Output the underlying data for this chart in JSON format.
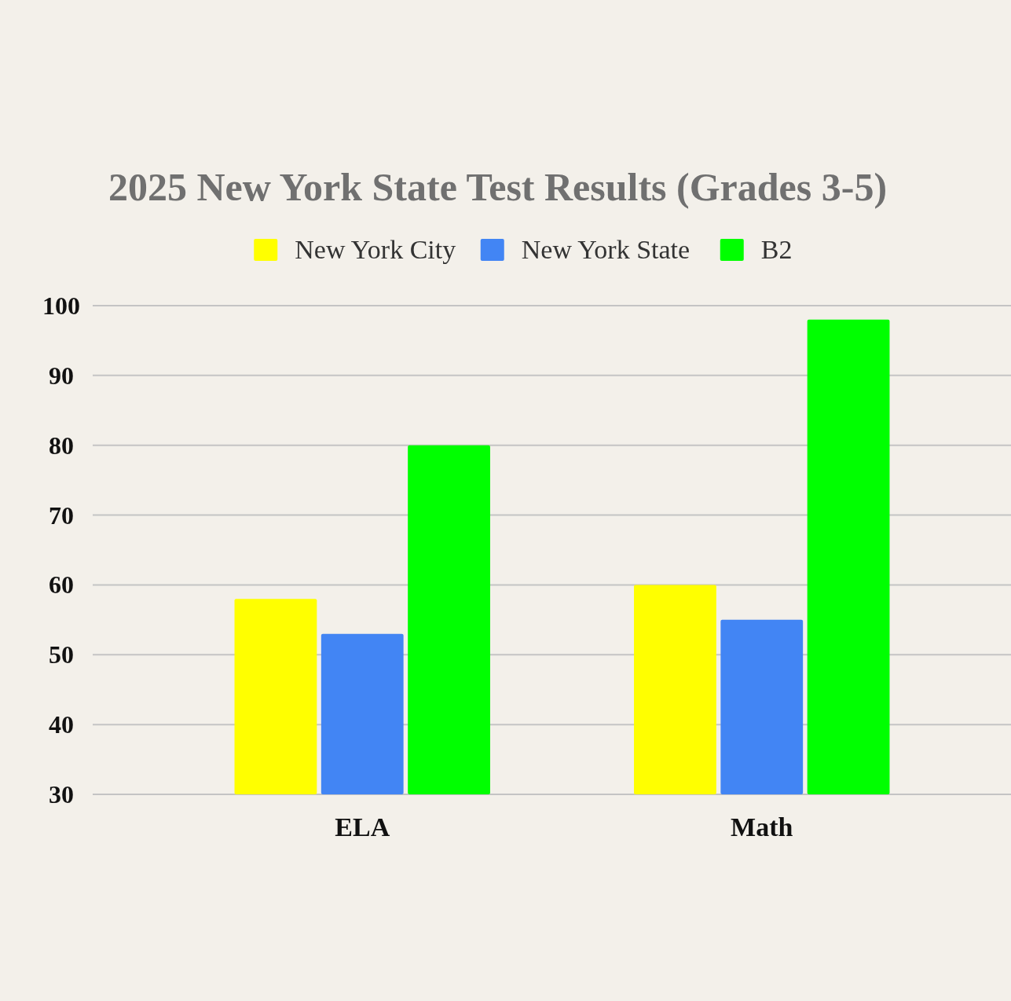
{
  "chart_data": {
    "type": "bar",
    "title": "2025 New York State Test Results (Grades 3-5)",
    "categories": [
      "ELA",
      "Math"
    ],
    "series": [
      {
        "name": "New York City",
        "color": "#ffff00",
        "values": [
          58,
          60
        ]
      },
      {
        "name": "New York State",
        "color": "#4285f4",
        "values": [
          53,
          55
        ]
      },
      {
        "name": "B2",
        "color": "#00ff00",
        "values": [
          80,
          98
        ]
      }
    ],
    "ylim": [
      30,
      100
    ],
    "yticks": [
      30,
      40,
      50,
      60,
      70,
      80,
      90,
      100
    ],
    "grid": "y",
    "legend": "top"
  }
}
